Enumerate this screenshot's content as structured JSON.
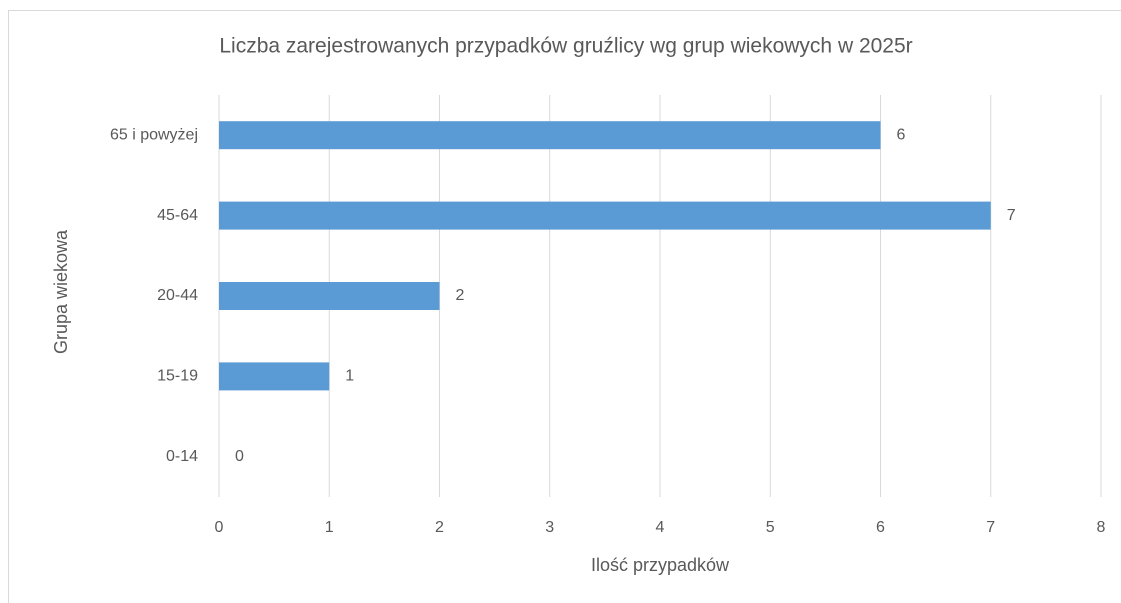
{
  "chart_data": {
    "type": "bar",
    "orientation": "horizontal",
    "title": "Liczba zarejestrowanych przypadków gruźlicy wg grup wiekowych w 2025r",
    "categories": [
      "0-14",
      "15-19",
      "20-44",
      "45-64",
      "65 i powyżej"
    ],
    "values": [
      0,
      1,
      2,
      7,
      6
    ],
    "color": "#5b9bd5",
    "x_label": "Ilość przypadków",
    "y_label": "Grupa wiekowa",
    "xlim": [
      0,
      8
    ],
    "xticks": [
      0,
      1,
      2,
      3,
      4,
      5,
      6,
      7,
      8
    ],
    "grid": true
  }
}
